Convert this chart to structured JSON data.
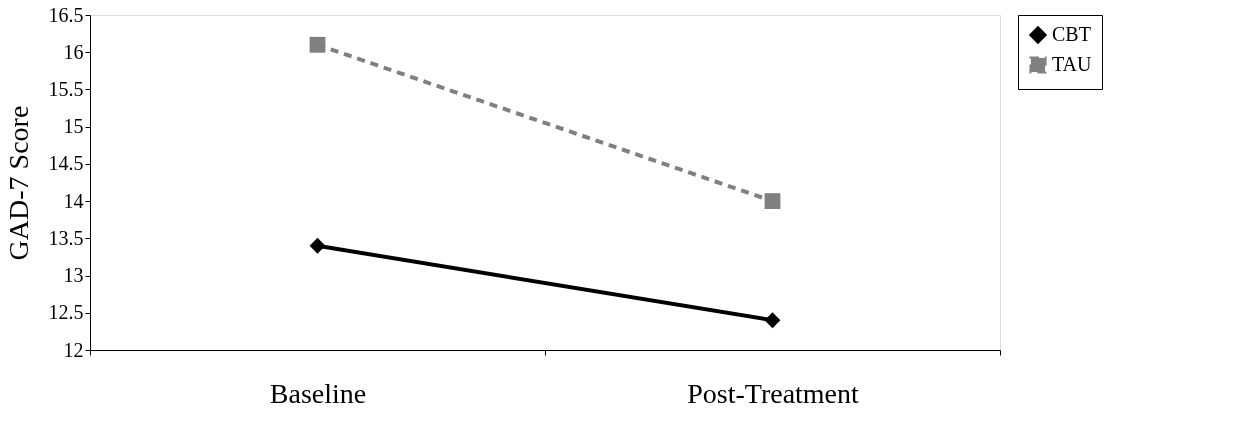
{
  "chart_data": {
    "type": "line",
    "ylabel": "GAD-7 Score",
    "categories": [
      "Baseline",
      "Post-Treatment"
    ],
    "series": [
      {
        "name": "CBT",
        "color": "#000000",
        "values": [
          13.4,
          12.4
        ],
        "marker": "diamond",
        "line_style": "solid"
      },
      {
        "name": "TAU",
        "color": "#808080",
        "values": [
          16.1,
          14.0
        ],
        "marker": "square",
        "line_style": "dashed"
      }
    ],
    "ylim": [
      12,
      16.5
    ],
    "yticks": [
      12,
      12.5,
      13,
      13.5,
      14,
      14.5,
      15,
      15.5,
      16,
      16.5
    ],
    "grid": false,
    "legend": "right"
  }
}
